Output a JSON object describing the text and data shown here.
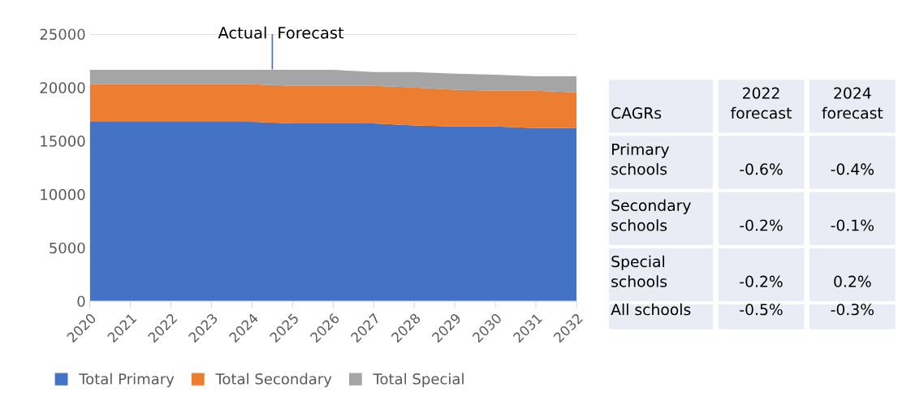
{
  "chart_data": [
    {
      "type": "area",
      "stacked": true,
      "x": [
        2020,
        2021,
        2022,
        2023,
        2024,
        2025,
        2026,
        2027,
        2028,
        2029,
        2030,
        2031,
        2032
      ],
      "series": [
        {
          "name": "Total Primary",
          "color": "#4472c4",
          "values": [
            16800,
            16800,
            16800,
            16800,
            16800,
            16650,
            16650,
            16650,
            16450,
            16350,
            16350,
            16200,
            16200
          ]
        },
        {
          "name": "Total Secondary",
          "color": "#ed7d31",
          "values": [
            3500,
            3500,
            3500,
            3500,
            3500,
            3500,
            3500,
            3500,
            3550,
            3450,
            3350,
            3500,
            3350
          ]
        },
        {
          "name": "Total Special",
          "color": "#a5a5a5",
          "values": [
            1350,
            1350,
            1350,
            1350,
            1350,
            1500,
            1500,
            1300,
            1450,
            1500,
            1500,
            1350,
            1500
          ]
        }
      ],
      "xlim": [
        2020,
        2032
      ],
      "xticks": [
        2020,
        2021,
        2022,
        2023,
        2024,
        2025,
        2026,
        2027,
        2028,
        2029,
        2030,
        2031,
        2032
      ],
      "ylim": [
        0,
        25000
      ],
      "yticks": [
        0,
        5000,
        10000,
        15000,
        20000,
        25000
      ],
      "grid": "y",
      "legend": "bottom",
      "ref_lines": [
        {
          "axis": "x",
          "value": 2024.5,
          "color": "#4472c4"
        }
      ],
      "annotations": [
        "Actual",
        "Forecast"
      ]
    },
    {
      "type": "other",
      "title": "CAGRs",
      "categories": [
        "2022\nforecast",
        "2024\nforecast"
      ],
      "y_categories": [
        "Primary\nschools",
        "Secondary\nschools",
        "Special\nschools",
        "All schools"
      ],
      "cell_labels": [
        [
          "-0.6%",
          "-0.4%"
        ],
        [
          "-0.2%",
          "-0.1%"
        ],
        [
          "-0.2%",
          "0.2%"
        ],
        [
          "-0.5%",
          "-0.3%"
        ]
      ]
    }
  ]
}
